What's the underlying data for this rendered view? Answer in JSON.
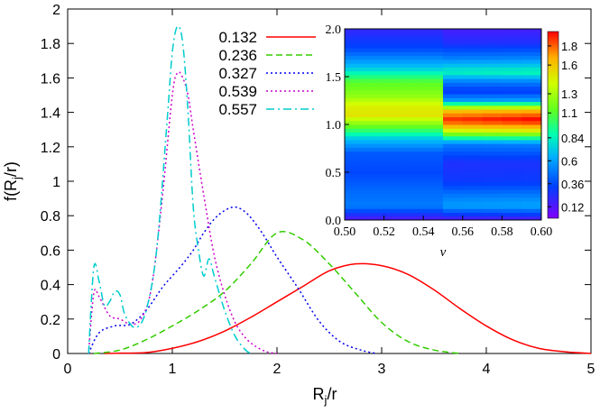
{
  "chart_data": [
    {
      "type": "line",
      "title": "",
      "xlabel": "R_j/r",
      "ylabel": "f(R_j/r)",
      "xlim": [
        0,
        5
      ],
      "ylim": [
        0,
        2
      ],
      "xticks": [
        "0",
        "1",
        "2",
        "3",
        "4",
        "5"
      ],
      "yticks": [
        "0",
        "0.2",
        "0.4",
        "0.6",
        "0.8",
        "1",
        "1.2",
        "1.4",
        "1.6",
        "1.8",
        "2"
      ],
      "legend_position": "top-center",
      "series": [
        {
          "name": "0.132",
          "color": "#ff0000",
          "dash": "solid",
          "x": [
            0.35,
            0.5,
            0.75,
            1.0,
            1.25,
            1.5,
            1.75,
            2.0,
            2.25,
            2.5,
            2.75,
            3.0,
            3.25,
            3.5,
            3.75,
            4.0,
            4.25,
            4.5,
            4.75,
            5.0
          ],
          "y": [
            0.0,
            0.002,
            0.005,
            0.03,
            0.07,
            0.13,
            0.21,
            0.3,
            0.39,
            0.48,
            0.52,
            0.51,
            0.46,
            0.37,
            0.26,
            0.16,
            0.08,
            0.03,
            0.01,
            0.0
          ]
        },
        {
          "name": "0.236",
          "color": "#33cc00",
          "dash": "dashed",
          "x": [
            0.25,
            0.5,
            0.75,
            1.0,
            1.25,
            1.5,
            1.75,
            2.0,
            2.25,
            2.5,
            2.75,
            3.0,
            3.25,
            3.5,
            3.75
          ],
          "y": [
            0.0,
            0.02,
            0.08,
            0.16,
            0.25,
            0.36,
            0.52,
            0.7,
            0.66,
            0.52,
            0.35,
            0.18,
            0.07,
            0.02,
            0.0
          ]
        },
        {
          "name": "0.327",
          "color": "#0000ee",
          "dash": "dotted",
          "x": [
            0.2,
            0.3,
            0.45,
            0.6,
            0.75,
            0.9,
            1.0,
            1.1,
            1.2,
            1.3,
            1.4,
            1.5,
            1.6,
            1.7,
            1.8,
            1.9,
            2.0,
            2.2,
            2.4,
            2.6,
            2.8,
            2.95
          ],
          "y": [
            0.0,
            0.12,
            0.16,
            0.17,
            0.25,
            0.38,
            0.45,
            0.52,
            0.6,
            0.7,
            0.78,
            0.83,
            0.85,
            0.82,
            0.75,
            0.66,
            0.56,
            0.38,
            0.19,
            0.07,
            0.02,
            0.0
          ]
        },
        {
          "name": "0.539",
          "color": "#cc00cc",
          "dash": "dotted",
          "x": [
            0.2,
            0.25,
            0.3,
            0.4,
            0.5,
            0.6,
            0.7,
            0.8,
            0.9,
            1.0,
            1.05,
            1.1,
            1.15,
            1.2,
            1.3,
            1.4,
            1.5,
            1.6,
            1.7,
            1.8,
            1.9,
            2.0
          ],
          "y": [
            0.0,
            0.35,
            0.33,
            0.22,
            0.2,
            0.17,
            0.2,
            0.38,
            0.88,
            1.5,
            1.63,
            1.6,
            1.5,
            1.3,
            0.92,
            0.57,
            0.34,
            0.18,
            0.09,
            0.04,
            0.01,
            0.0
          ]
        },
        {
          "name": "0.557",
          "color": "#00cccc",
          "dash": "dashdot",
          "x": [
            0.2,
            0.25,
            0.3,
            0.35,
            0.4,
            0.45,
            0.5,
            0.55,
            0.65,
            0.75,
            0.85,
            0.95,
            1.0,
            1.05,
            1.1,
            1.15,
            1.2,
            1.25,
            1.3,
            1.35,
            1.4,
            1.5,
            1.6,
            1.7,
            1.75
          ],
          "y": [
            0.0,
            0.5,
            0.42,
            0.28,
            0.3,
            0.36,
            0.34,
            0.22,
            0.15,
            0.25,
            0.6,
            1.35,
            1.75,
            1.9,
            1.8,
            1.4,
            0.85,
            0.6,
            0.45,
            0.55,
            0.45,
            0.25,
            0.1,
            0.02,
            0.0
          ]
        }
      ]
    },
    {
      "type": "heatmap",
      "title": "",
      "xlabel": "ν",
      "ylabel": "",
      "xlim": [
        0.5,
        0.6
      ],
      "ylim": [
        0.0,
        2.0
      ],
      "xticks": [
        "0.50",
        "0.52",
        "0.54",
        "0.56",
        "0.58",
        "0.60"
      ],
      "yticks": [
        "0.0",
        "0.5",
        "1.0",
        "1.5",
        "2.0"
      ],
      "colorbar_ticks": [
        "0.12",
        "0.36",
        "0.6",
        "0.84",
        "1.1",
        "1.3",
        "1.6",
        "1.8"
      ],
      "colorbar_range": [
        0.0,
        1.95
      ],
      "nu_columns": [
        0.5,
        0.51,
        0.52,
        0.53,
        0.54,
        0.55,
        0.56,
        0.57,
        0.58,
        0.59,
        0.6
      ],
      "profile_left": {
        "y": [
          0.0,
          0.15,
          0.3,
          0.5,
          0.7,
          0.85,
          1.0,
          1.1,
          1.2,
          1.3,
          1.45,
          1.6,
          1.8,
          2.0
        ],
        "v": [
          0.1,
          0.5,
          0.45,
          0.35,
          0.4,
          0.7,
          1.2,
          1.5,
          1.45,
          1.25,
          1.1,
          0.7,
          0.35,
          0.2
        ]
      },
      "profile_right": {
        "y": [
          0.0,
          0.15,
          0.25,
          0.4,
          0.6,
          0.8,
          0.95,
          1.05,
          1.15,
          1.25,
          1.35,
          1.45,
          1.55,
          1.7,
          1.85,
          2.0
        ],
        "v": [
          0.1,
          0.6,
          0.5,
          0.3,
          0.25,
          0.5,
          1.5,
          1.9,
          1.6,
          0.6,
          0.3,
          0.5,
          0.85,
          0.5,
          0.25,
          0.15
        ]
      },
      "transition_nu": 0.555
    }
  ]
}
